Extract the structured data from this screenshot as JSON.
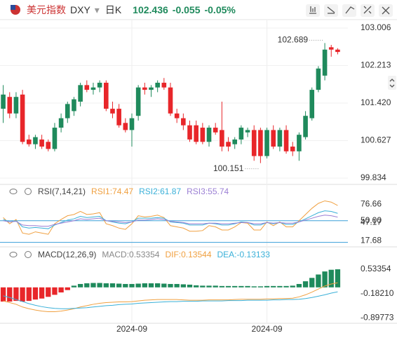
{
  "header": {
    "name": "美元指数",
    "symbol": "DXY",
    "period": "日K",
    "price": "102.436",
    "change": "-0.055",
    "change_pct": "-0.05%"
  },
  "chart_data": [
    {
      "type": "candlestick",
      "up_color": "#1f8a5c",
      "down_color": "#e8262a",
      "categories": [
        null,
        null,
        null,
        null,
        null,
        null,
        null,
        null,
        null,
        null,
        null,
        null,
        null,
        null,
        null,
        null,
        null,
        null,
        null,
        null,
        "2024-09",
        null,
        null,
        null,
        null,
        null,
        null,
        null,
        null,
        null,
        null,
        null,
        null,
        null,
        null,
        null,
        null,
        null,
        null,
        null,
        null,
        "2024-09",
        null,
        null,
        null,
        null,
        null,
        null,
        null,
        null,
        null,
        null,
        null
      ],
      "open": [
        101.3,
        101.55,
        101.2,
        101.6,
        100.65,
        100.55,
        100.65,
        100.6,
        100.45,
        100.9,
        101.1,
        101.25,
        101.45,
        101.8,
        101.7,
        101.75,
        101.85,
        101.3,
        101.3,
        101.0,
        100.85,
        101.15,
        101.75,
        101.7,
        101.75,
        101.85,
        101.75,
        101.2,
        101.1,
        100.95,
        100.95,
        100.9,
        100.6,
        100.9,
        100.85,
        100.6,
        100.55,
        100.65,
        100.8,
        100.85,
        100.85,
        100.3,
        100.85,
        100.5,
        100.85,
        100.5,
        100.4,
        100.7,
        101.1,
        101.7,
        102.0,
        102.6,
        102.55
      ],
      "high": [
        101.8,
        101.65,
        101.65,
        101.7,
        100.75,
        100.75,
        100.75,
        100.65,
        101.0,
        101.2,
        101.45,
        101.55,
        101.85,
        101.9,
        101.85,
        101.9,
        101.9,
        101.45,
        101.4,
        101.1,
        101.2,
        101.8,
        101.85,
        101.8,
        101.9,
        101.95,
        101.85,
        101.3,
        101.2,
        101.05,
        101.05,
        101.0,
        100.95,
        101.0,
        101.45,
        100.7,
        100.7,
        100.95,
        100.9,
        100.95,
        100.9,
        100.9,
        100.95,
        100.9,
        100.95,
        100.6,
        100.8,
        101.25,
        101.75,
        102.2,
        102.689,
        102.65,
        102.58
      ],
      "low": [
        101.0,
        101.1,
        101.1,
        100.55,
        100.5,
        100.45,
        100.45,
        100.4,
        100.4,
        100.8,
        101.0,
        101.15,
        101.35,
        101.65,
        101.6,
        101.65,
        101.25,
        101.1,
        100.9,
        100.8,
        100.5,
        101.05,
        101.6,
        101.55,
        101.65,
        101.7,
        101.15,
        101.0,
        100.85,
        100.6,
        100.55,
        100.55,
        100.5,
        100.75,
        100.4,
        100.4,
        100.45,
        100.55,
        100.7,
        100.2,
        100.151,
        100.25,
        100.45,
        100.4,
        100.35,
        100.3,
        100.2,
        100.65,
        101.05,
        101.65,
        101.9,
        102.4,
        102.45
      ],
      "close": [
        101.6,
        101.2,
        101.55,
        100.6,
        100.55,
        100.7,
        100.5,
        100.45,
        100.9,
        101.1,
        101.4,
        101.5,
        101.8,
        101.7,
        101.75,
        101.85,
        101.3,
        101.2,
        100.95,
        100.85,
        101.1,
        101.75,
        101.7,
        101.75,
        101.85,
        101.75,
        101.2,
        101.1,
        100.95,
        100.65,
        100.6,
        100.6,
        100.9,
        100.8,
        100.5,
        100.5,
        100.65,
        100.9,
        100.85,
        100.3,
        100.3,
        100.85,
        100.5,
        100.85,
        100.4,
        100.4,
        100.75,
        101.15,
        101.7,
        102.15,
        102.55,
        102.55,
        102.5
      ],
      "annotations": [
        {
          "text": "102.689",
          "value": 102.689
        },
        {
          "text": "100.151",
          "value": 100.151
        }
      ],
      "ylim": [
        99.715,
        103.154
      ],
      "yticks": [
        103.006,
        102.213,
        {
          "value": 101.42,
          "label": "101.420"
        },
        100.627,
        99.834
      ],
      "grid": true
    },
    {
      "type": "line",
      "title": "RSI(7,14,21)",
      "ylim": [
        10,
        95
      ],
      "yticks": [
        76.66,
        {
          "value": 50,
          "label": "50.00"
        },
        47.17,
        17.68
      ],
      "hlines": [
        50,
        15
      ],
      "hline_color": "#3a9fd8",
      "series": [
        {
          "name": "RSI1:",
          "color": "#f0a040",
          "values": [
            55,
            45,
            52,
            30,
            28,
            32,
            30,
            28,
            45,
            52,
            58,
            60,
            65,
            60,
            61,
            63,
            45,
            42,
            38,
            36,
            45,
            58,
            56,
            57,
            59,
            55,
            42,
            40,
            38,
            33,
            33,
            34,
            42,
            40,
            35,
            35,
            40,
            47,
            46,
            35,
            35,
            48,
            42,
            48,
            40,
            40,
            50,
            60,
            70,
            78,
            82,
            80,
            74.47
          ]
        },
        {
          "name": "RSI2:",
          "color": "#3ab0d8",
          "values": [
            52,
            48,
            50,
            40,
            38,
            39,
            38,
            37,
            43,
            47,
            51,
            53,
            57,
            55,
            56,
            57,
            50,
            48,
            46,
            45,
            48,
            54,
            54,
            54,
            55,
            54,
            48,
            47,
            46,
            43,
            43,
            43,
            46,
            45,
            43,
            43,
            45,
            48,
            47,
            43,
            43,
            47,
            45,
            47,
            44,
            44,
            48,
            53,
            58,
            63,
            66,
            65,
            61.87
          ]
        },
        {
          "name": "RSI3:",
          "color": "#9b7fd4",
          "values": [
            50,
            48,
            49,
            43,
            42,
            42,
            41,
            41,
            44,
            46,
            48,
            50,
            53,
            52,
            53,
            54,
            50,
            49,
            48,
            47,
            48,
            51,
            51,
            52,
            53,
            52,
            49,
            48,
            47,
            45,
            45,
            45,
            46,
            46,
            45,
            45,
            46,
            47,
            47,
            45,
            45,
            47,
            46,
            47,
            46,
            46,
            48,
            51,
            54,
            57,
            59,
            58,
            55.74
          ]
        }
      ]
    },
    {
      "type": "combo",
      "title": "MACD(12,26,9)",
      "ylim": [
        -1.04,
        0.99
      ],
      "yticks": [
        0.53354,
        {
          "value": -0.1821,
          "label": "-0.18210"
        },
        -0.89773
      ],
      "up_color": "#1f8a5c",
      "down_color": "#e8262a",
      "series": [
        {
          "name": "MACD:",
          "kind": "bar",
          "color": "#888888",
          "values": [
            -0.42,
            -0.42,
            -0.4,
            -0.42,
            -0.4,
            -0.36,
            -0.33,
            -0.28,
            -0.22,
            -0.15,
            -0.08,
            0.05,
            0.1,
            0.12,
            0.13,
            0.13,
            0.12,
            0.12,
            0.11,
            0.1,
            0.1,
            0.11,
            0.12,
            0.12,
            0.12,
            0.11,
            0.1,
            0.1,
            0.09,
            0.08,
            0.06,
            0.05,
            0.05,
            0.05,
            0.04,
            0.04,
            0.04,
            0.04,
            0.04,
            0.03,
            0.03,
            0.04,
            0.04,
            0.04,
            0.04,
            0.05,
            0.1,
            0.18,
            0.28,
            0.38,
            0.47,
            0.52,
            0.53354
          ]
        },
        {
          "name": "DIF:",
          "kind": "line",
          "color": "#f0a040",
          "values": [
            -0.4,
            -0.45,
            -0.5,
            -0.58,
            -0.63,
            -0.67,
            -0.7,
            -0.72,
            -0.72,
            -0.7,
            -0.67,
            -0.63,
            -0.58,
            -0.54,
            -0.5,
            -0.47,
            -0.45,
            -0.44,
            -0.43,
            -0.43,
            -0.42,
            -0.4,
            -0.38,
            -0.37,
            -0.36,
            -0.36,
            -0.36,
            -0.36,
            -0.37,
            -0.38,
            -0.38,
            -0.38,
            -0.37,
            -0.37,
            -0.37,
            -0.37,
            -0.36,
            -0.35,
            -0.35,
            -0.35,
            -0.35,
            -0.34,
            -0.34,
            -0.33,
            -0.33,
            -0.32,
            -0.28,
            -0.22,
            -0.14,
            -0.05,
            0.04,
            0.1,
            0.13544
          ]
        },
        {
          "name": "DEA:",
          "kind": "line",
          "color": "#3ab0d8",
          "values": [
            -0.25,
            -0.3,
            -0.36,
            -0.42,
            -0.48,
            -0.53,
            -0.57,
            -0.6,
            -0.62,
            -0.63,
            -0.63,
            -0.62,
            -0.61,
            -0.6,
            -0.58,
            -0.56,
            -0.54,
            -0.53,
            -0.51,
            -0.5,
            -0.49,
            -0.47,
            -0.46,
            -0.45,
            -0.44,
            -0.43,
            -0.42,
            -0.42,
            -0.41,
            -0.41,
            -0.41,
            -0.4,
            -0.4,
            -0.4,
            -0.4,
            -0.39,
            -0.39,
            -0.39,
            -0.38,
            -0.38,
            -0.38,
            -0.38,
            -0.37,
            -0.37,
            -0.36,
            -0.36,
            -0.35,
            -0.33,
            -0.3,
            -0.26,
            -0.22,
            -0.17,
            -0.13133
          ]
        }
      ]
    }
  ]
}
